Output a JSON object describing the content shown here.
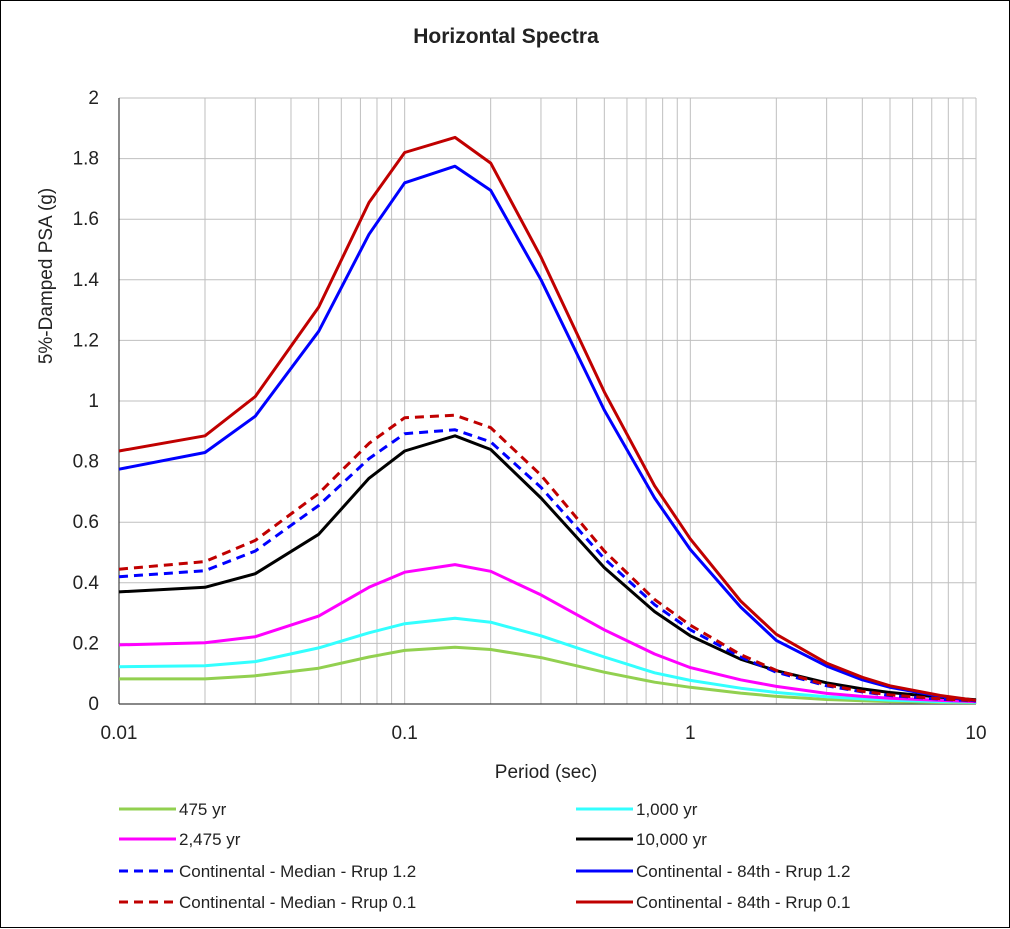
{
  "chart_data": {
    "type": "line",
    "title": "Horizontal Spectra",
    "xlabel": "Period (sec)",
    "ylabel": "5%-Damped PSA (g)",
    "x_scale": "log",
    "xlim": [
      0.01,
      10
    ],
    "ylim": [
      0,
      2
    ],
    "x_ticks": [
      0.01,
      0.1,
      1,
      10
    ],
    "x_tick_labels": [
      "0.01",
      "0.1",
      "1",
      "10"
    ],
    "y_ticks": [
      0,
      0.2,
      0.4,
      0.6,
      0.8,
      1,
      1.2,
      1.4,
      1.6,
      1.8,
      2
    ],
    "y_tick_labels": [
      "0",
      "0.2",
      "0.4",
      "0.6",
      "0.8",
      "1",
      "1.2",
      "1.4",
      "1.6",
      "1.8",
      "2"
    ],
    "grid": true,
    "legend_position": "bottom",
    "series": [
      {
        "name": "475 yr",
        "color": "#92d050",
        "dash": "solid",
        "x": [
          0.01,
          0.02,
          0.03,
          0.05,
          0.075,
          0.1,
          0.15,
          0.2,
          0.3,
          0.5,
          0.75,
          1,
          1.5,
          2,
          3,
          4,
          5,
          7.5,
          10
        ],
        "y": [
          0.083,
          0.083,
          0.093,
          0.118,
          0.155,
          0.177,
          0.187,
          0.18,
          0.153,
          0.105,
          0.072,
          0.055,
          0.036,
          0.025,
          0.015,
          0.011,
          0.008,
          0.005,
          0.004
        ]
      },
      {
        "name": "1,000 yr",
        "color": "#33ffff",
        "dash": "solid",
        "x": [
          0.01,
          0.02,
          0.03,
          0.05,
          0.075,
          0.1,
          0.15,
          0.2,
          0.3,
          0.5,
          0.75,
          1,
          1.5,
          2,
          3,
          4,
          5,
          7.5,
          10
        ],
        "y": [
          0.123,
          0.126,
          0.14,
          0.185,
          0.235,
          0.265,
          0.283,
          0.27,
          0.225,
          0.155,
          0.103,
          0.078,
          0.052,
          0.038,
          0.024,
          0.017,
          0.013,
          0.008,
          0.006
        ]
      },
      {
        "name": "2,475 yr",
        "color": "#ff00ff",
        "dash": "solid",
        "x": [
          0.01,
          0.02,
          0.03,
          0.05,
          0.075,
          0.1,
          0.15,
          0.2,
          0.3,
          0.5,
          0.75,
          1,
          1.5,
          2,
          3,
          4,
          5,
          7.5,
          10
        ],
        "y": [
          0.195,
          0.202,
          0.222,
          0.29,
          0.385,
          0.435,
          0.46,
          0.438,
          0.36,
          0.245,
          0.165,
          0.12,
          0.08,
          0.058,
          0.035,
          0.025,
          0.019,
          0.012,
          0.008
        ]
      },
      {
        "name": "10,000 yr",
        "color": "#000000",
        "dash": "solid",
        "x": [
          0.01,
          0.02,
          0.03,
          0.05,
          0.075,
          0.1,
          0.15,
          0.2,
          0.3,
          0.5,
          0.75,
          1,
          1.5,
          2,
          3,
          4,
          5,
          7.5,
          10
        ],
        "y": [
          0.37,
          0.385,
          0.43,
          0.56,
          0.745,
          0.835,
          0.885,
          0.84,
          0.68,
          0.45,
          0.305,
          0.225,
          0.148,
          0.11,
          0.07,
          0.05,
          0.038,
          0.022,
          0.014
        ]
      },
      {
        "name": "Continental - Median - Rrup 1.2",
        "color": "#0000ff",
        "dash": "dashed",
        "x": [
          0.01,
          0.02,
          0.03,
          0.05,
          0.075,
          0.1,
          0.15,
          0.2,
          0.3,
          0.5,
          0.75,
          1,
          1.5,
          2,
          3,
          4,
          5,
          7.5,
          10
        ],
        "y": [
          0.42,
          0.44,
          0.505,
          0.655,
          0.81,
          0.892,
          0.905,
          0.865,
          0.715,
          0.48,
          0.328,
          0.245,
          0.155,
          0.105,
          0.06,
          0.04,
          0.028,
          0.016,
          0.01
        ]
      },
      {
        "name": "Continental - 84th - Rrup 1.2",
        "color": "#0000ff",
        "dash": "solid",
        "x": [
          0.01,
          0.02,
          0.03,
          0.05,
          0.075,
          0.1,
          0.15,
          0.2,
          0.3,
          0.5,
          0.75,
          1,
          1.5,
          2,
          3,
          4,
          5,
          7.5,
          10
        ],
        "y": [
          0.775,
          0.83,
          0.95,
          1.23,
          1.55,
          1.72,
          1.775,
          1.695,
          1.4,
          0.97,
          0.68,
          0.51,
          0.32,
          0.21,
          0.125,
          0.08,
          0.055,
          0.025,
          0.01
        ]
      },
      {
        "name": "Continental - Median - Rrup 0.1",
        "color": "#c00000",
        "dash": "dashed",
        "x": [
          0.01,
          0.02,
          0.03,
          0.05,
          0.075,
          0.1,
          0.15,
          0.2,
          0.3,
          0.5,
          0.75,
          1,
          1.5,
          2,
          3,
          4,
          5,
          7.5,
          10
        ],
        "y": [
          0.445,
          0.47,
          0.54,
          0.695,
          0.86,
          0.945,
          0.953,
          0.912,
          0.755,
          0.505,
          0.345,
          0.26,
          0.163,
          0.111,
          0.063,
          0.042,
          0.03,
          0.017,
          0.011
        ]
      },
      {
        "name": "Continental - 84th - Rrup 0.1",
        "color": "#c00000",
        "dash": "solid",
        "x": [
          0.01,
          0.02,
          0.03,
          0.05,
          0.075,
          0.1,
          0.15,
          0.2,
          0.3,
          0.5,
          0.75,
          1,
          1.5,
          2,
          3,
          4,
          5,
          7.5,
          10
        ],
        "y": [
          0.835,
          0.885,
          1.015,
          1.31,
          1.655,
          1.82,
          1.87,
          1.785,
          1.475,
          1.03,
          0.72,
          0.545,
          0.34,
          0.23,
          0.135,
          0.088,
          0.06,
          0.028,
          0.012
        ]
      }
    ]
  }
}
